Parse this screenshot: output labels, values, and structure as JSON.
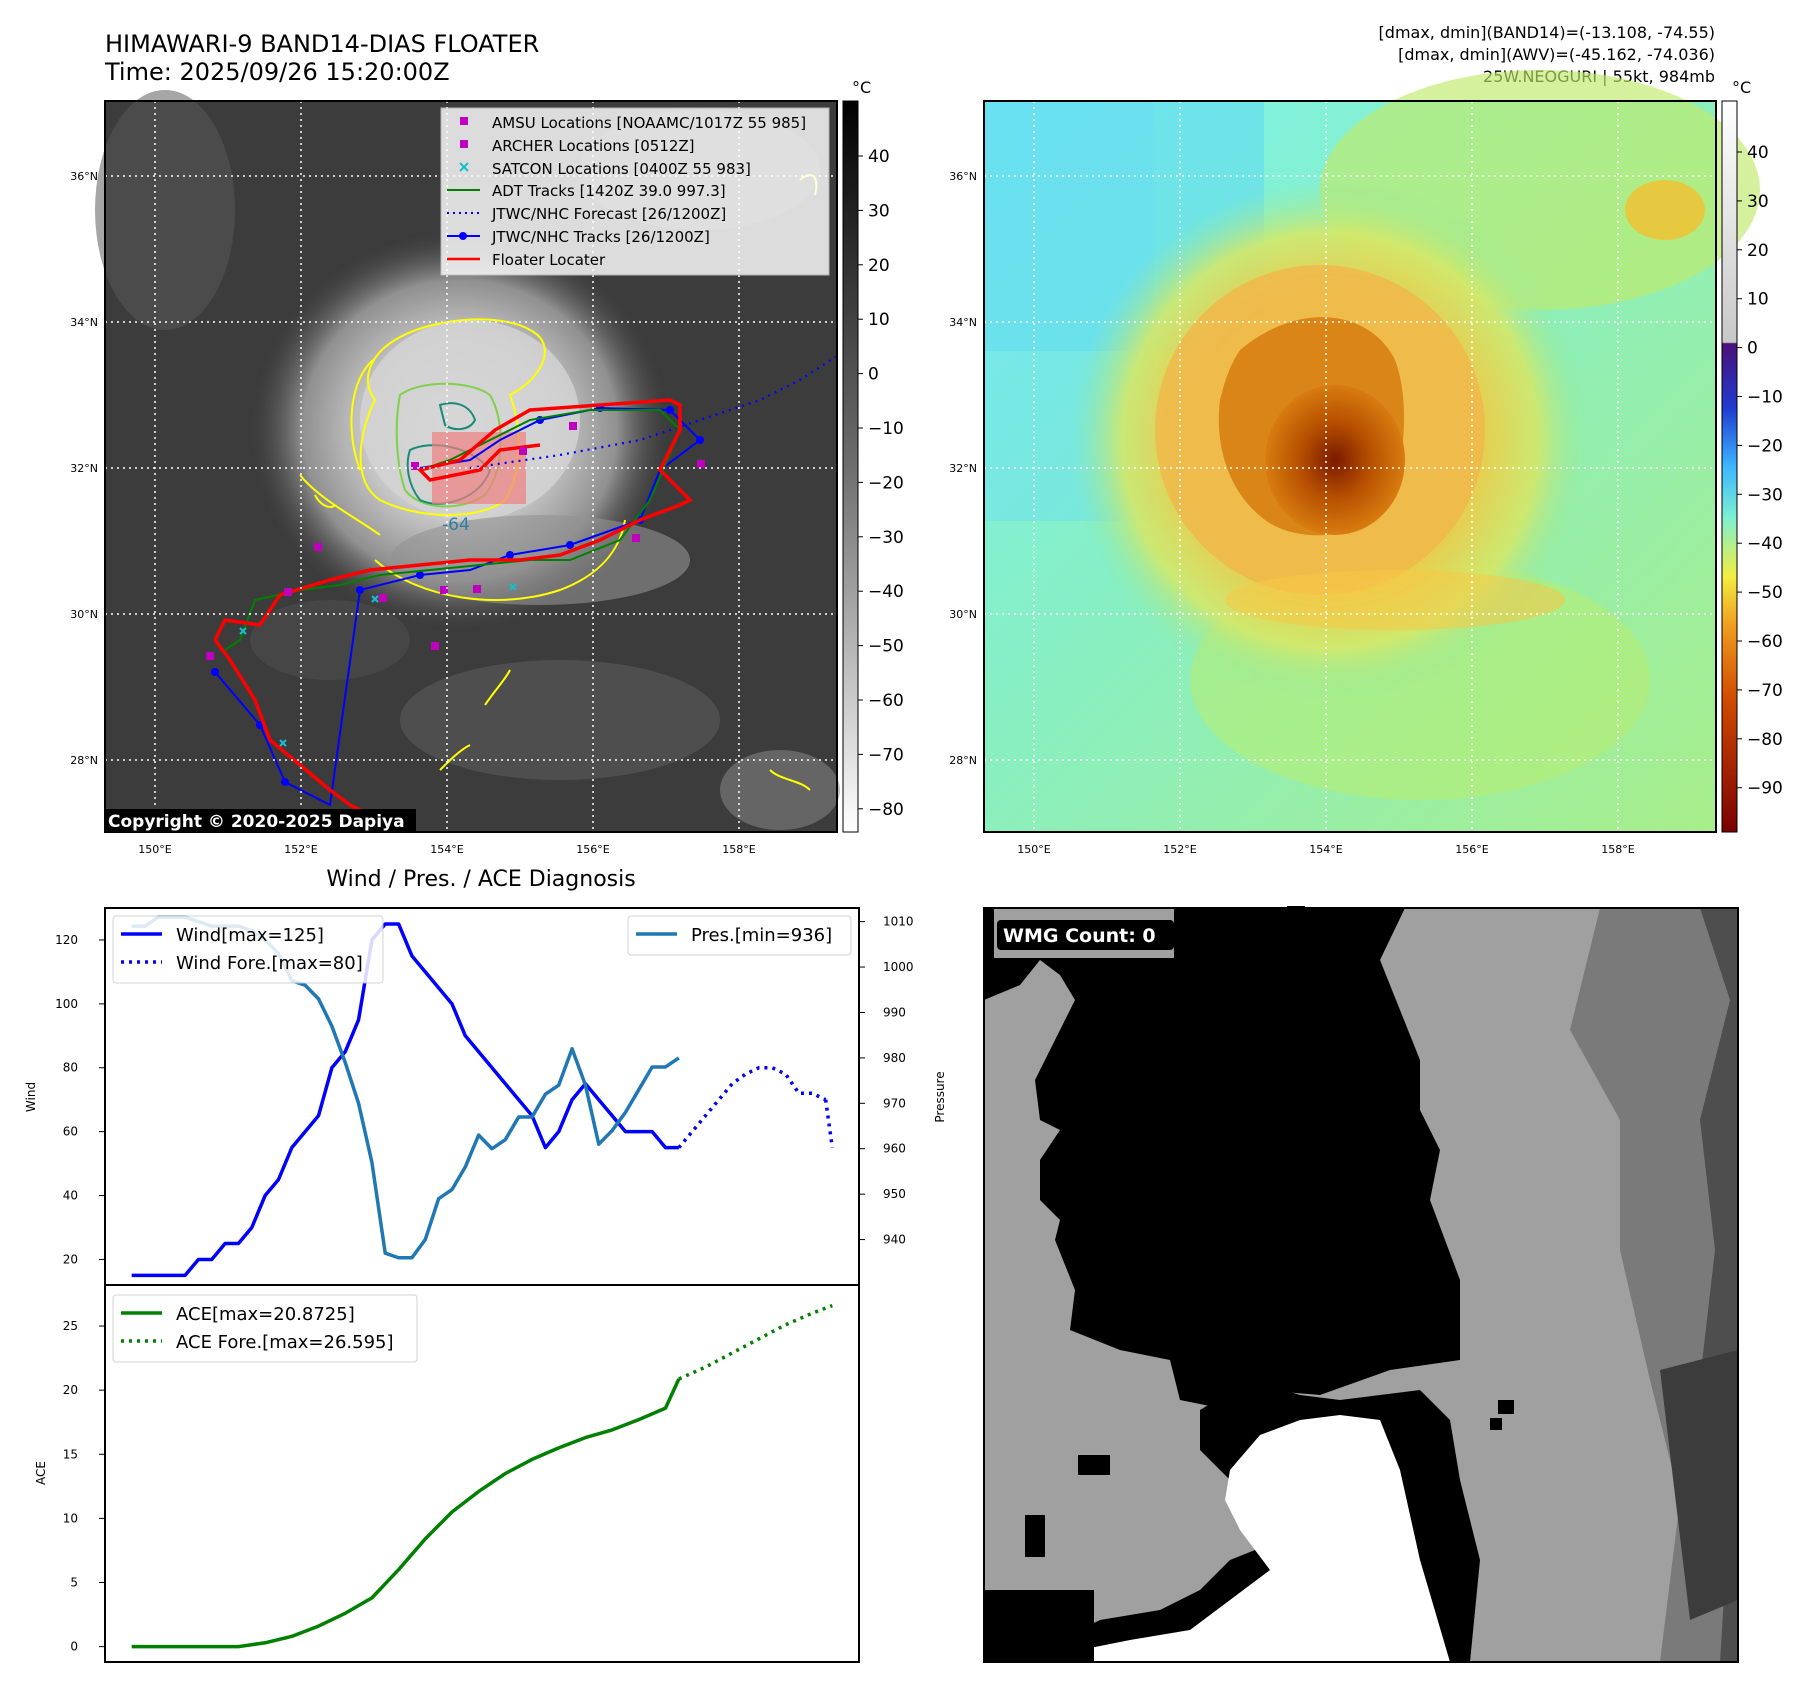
{
  "header": {
    "title_line1": "HIMAWARI-9 BAND14-DIAS FLOATER",
    "title_line2": "Time: 2025/09/26 15:20:00Z",
    "stats_line1": "[dmax, dmin](BAND14)=(-13.108, -74.55)",
    "stats_line2": "[dmax, dmin](AWV)=(-45.162, -74.036)",
    "stats_line3": "25W.NEOGURI | 55kt, 984mb"
  },
  "map": {
    "lat_labels": [
      "36°N",
      "34°N",
      "32°N",
      "30°N",
      "28°N"
    ],
    "lon_labels": [
      "150°E",
      "152°E",
      "154°E",
      "156°E",
      "158°E"
    ],
    "copyright": "Copyright © 2020-2025 Dapiya",
    "contour_label": "-64",
    "legend": [
      {
        "label": "AMSU Locations [NOAAMC/1017Z 55 985]",
        "color": "#bf00bf",
        "marker": "square"
      },
      {
        "label": "ARCHER Locations [0512Z]",
        "color": "#bf00bf",
        "marker": "square"
      },
      {
        "label": "SATCON Locations [0400Z 55 983]",
        "color": "#17becf",
        "marker": "x"
      },
      {
        "label": "ADT Tracks [1420Z 39.0 997.3]",
        "color": "#008000",
        "marker": "line"
      },
      {
        "label": "JTWC/NHC Forecast [26/1200Z]",
        "color": "#0000ff",
        "marker": "dotted"
      },
      {
        "label": "JTWC/NHC Tracks [26/1200Z]",
        "color": "#0000ff",
        "marker": "line-dot"
      },
      {
        "label": "Floater Locater",
        "color": "#ff0000",
        "marker": "line"
      }
    ]
  },
  "colorbars": {
    "unit": "°C",
    "left_ticks": [
      "40",
      "30",
      "20",
      "10",
      "0",
      "−10",
      "−20",
      "−30",
      "−40",
      "−50",
      "−60",
      "−70",
      "−80"
    ],
    "right_ticks": [
      "40",
      "30",
      "20",
      "10",
      "0",
      "−10",
      "−20",
      "−30",
      "−40",
      "−50",
      "−60",
      "−70",
      "−80",
      "−90"
    ]
  },
  "wmg": {
    "label": "WMG Count: 0"
  },
  "chart_data": [
    {
      "type": "line",
      "title": "Wind / Pres. / ACE Diagnosis",
      "ylabel": "Wind",
      "ylabel_right": "Pressure",
      "ylim": [
        12,
        130
      ],
      "ylim_right": [
        930,
        1013
      ],
      "yticks": [
        20,
        40,
        60,
        80,
        100,
        120
      ],
      "yticks_right": [
        940,
        950,
        960,
        970,
        980,
        990,
        1000,
        1010
      ],
      "series": [
        {
          "name": "Wind[max=125]",
          "axis": "left",
          "color": "#0000ff",
          "style": "solid",
          "x": [
            0,
            1,
            2,
            3,
            4,
            5,
            6,
            7,
            8,
            9,
            10,
            11,
            12,
            13,
            14,
            15,
            16,
            17,
            18,
            19,
            20,
            21,
            22,
            23,
            24,
            25,
            26,
            27,
            28,
            29,
            30,
            31,
            32,
            33,
            34,
            35,
            36,
            37,
            38,
            39,
            40,
            41
          ],
          "values": [
            15,
            15,
            15,
            15,
            15,
            20,
            20,
            25,
            25,
            30,
            40,
            45,
            55,
            60,
            65,
            80,
            85,
            95,
            120,
            125,
            125,
            115,
            110,
            105,
            100,
            90,
            85,
            80,
            75,
            70,
            65,
            55,
            60,
            70,
            75,
            70,
            65,
            60,
            60,
            60,
            55,
            55
          ]
        },
        {
          "name": "Wind Fore.[max=80]",
          "axis": "left",
          "color": "#0000ff",
          "style": "dotted",
          "x": [
            41,
            42,
            43,
            44,
            45,
            46,
            47,
            48,
            49,
            50,
            51,
            52
          ],
          "values": [
            55,
            60,
            65,
            70,
            75,
            78,
            80,
            80,
            78,
            72,
            72,
            70
          ]
        },
        {
          "name": "Wind Fore.[tail]",
          "axis": "left",
          "color": "#0000ff",
          "style": "dotted",
          "x": [
            52,
            52.5
          ],
          "values": [
            70,
            55
          ]
        },
        {
          "name": "Pres.[min=936]",
          "axis": "right",
          "color": "#1f77b4",
          "style": "solid",
          "x": [
            0,
            1,
            2,
            3,
            4,
            5,
            6,
            7,
            8,
            9,
            10,
            11,
            12,
            13,
            14,
            15,
            16,
            17,
            18,
            19,
            20,
            21,
            22,
            23,
            24,
            25,
            26,
            27,
            28,
            29,
            30,
            31,
            32,
            33,
            34,
            35,
            36,
            37,
            38,
            39,
            40,
            41
          ],
          "values": [
            1009,
            1009,
            1011,
            1011,
            1011,
            1010,
            1009,
            1009,
            1009,
            1008,
            1006,
            1003,
            997,
            996,
            993,
            987,
            979,
            970,
            957,
            937,
            936,
            936,
            940,
            949,
            951,
            956,
            963,
            960,
            962,
            967,
            967,
            972,
            974,
            982,
            974,
            961,
            964,
            968,
            973,
            978,
            978,
            980
          ]
        }
      ]
    },
    {
      "type": "line",
      "title": "",
      "ylabel": "ACE",
      "ylim": [
        -1.2,
        28.2
      ],
      "yticks": [
        0,
        5,
        10,
        15,
        20,
        25
      ],
      "series": [
        {
          "name": "ACE[max=20.8725]",
          "color": "#008000",
          "style": "solid",
          "x": [
            0,
            2,
            4,
            6,
            8,
            10,
            12,
            14,
            16,
            18,
            20,
            22,
            24,
            26,
            28,
            30,
            32,
            34,
            36,
            38,
            40,
            41
          ],
          "values": [
            0,
            0,
            0,
            0,
            0,
            0.3,
            0.8,
            1.6,
            2.6,
            3.8,
            6,
            8.4,
            10.5,
            12.1,
            13.5,
            14.6,
            15.5,
            16.3,
            16.9,
            17.7,
            18.6,
            20.8725
          ]
        },
        {
          "name": "ACE Fore.[max=26.595]",
          "color": "#008000",
          "style": "dotted",
          "x": [
            41,
            43,
            45,
            47,
            49,
            51,
            52.5
          ],
          "values": [
            20.8725,
            21.8,
            22.9,
            24,
            25.1,
            26,
            26.595
          ]
        }
      ]
    }
  ]
}
